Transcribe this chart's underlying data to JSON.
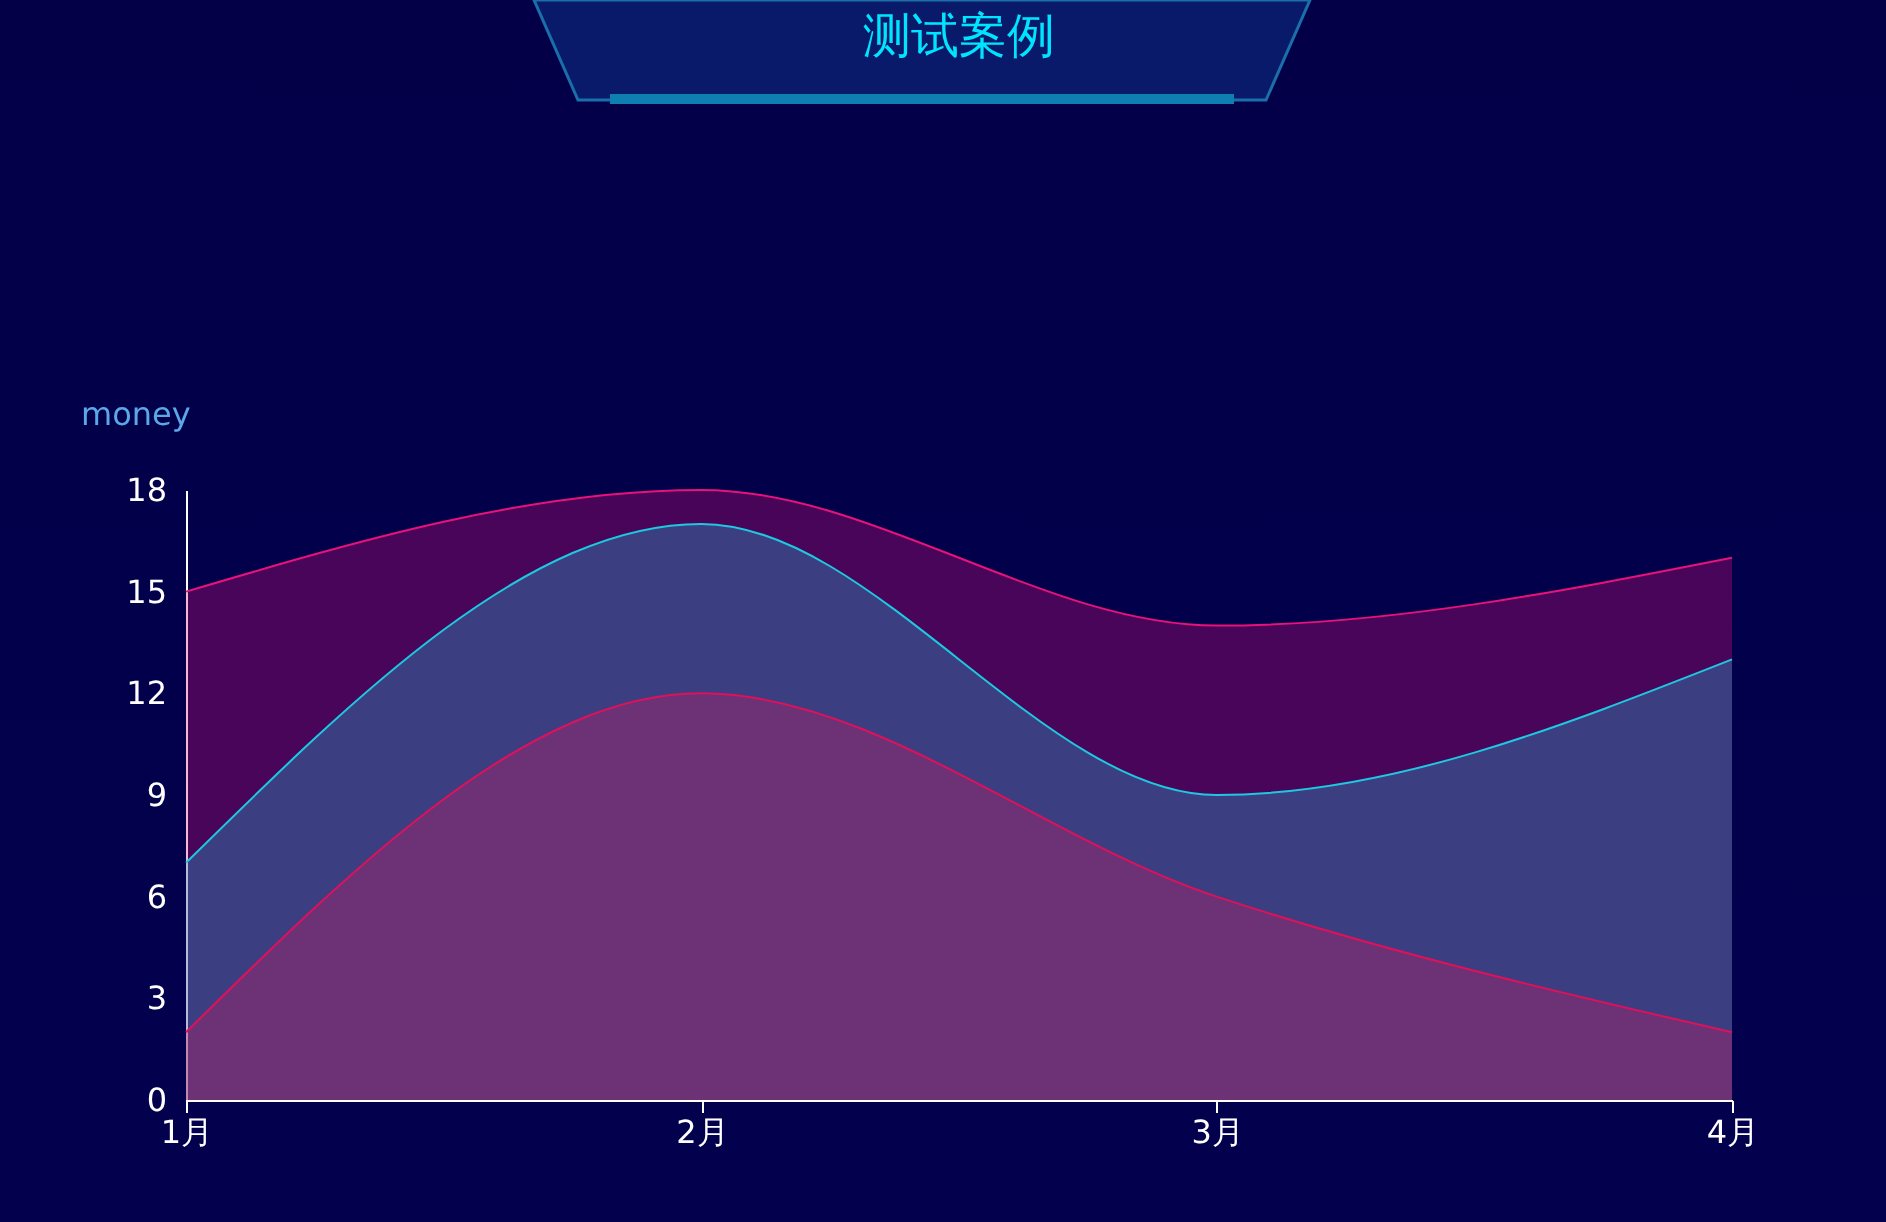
{
  "chart_data": {
    "type": "area",
    "title": "测试案例",
    "ylabel": "money",
    "categories": [
      "1月",
      "2月",
      "3月",
      "4月"
    ],
    "series": [
      {
        "color": "#e8127a",
        "values": [
          15,
          18,
          14,
          16
        ]
      },
      {
        "color": "#1ec8e0",
        "values": [
          7,
          17,
          9,
          13
        ]
      },
      {
        "color": "#e0105a",
        "values": [
          2,
          12,
          6,
          2
        ]
      }
    ],
    "ylim": [
      0,
      18
    ],
    "yticks": [
      0,
      3,
      6,
      9,
      12,
      15,
      18
    ]
  }
}
